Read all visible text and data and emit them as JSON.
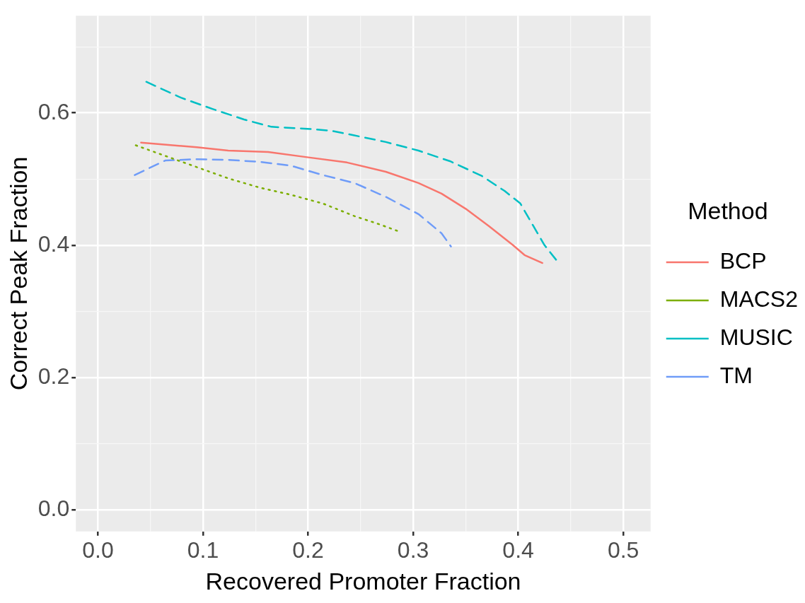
{
  "chart_data": {
    "type": "line",
    "xlabel": "Recovered Promoter Fraction",
    "ylabel": "Correct Peak Fraction",
    "legend_title": "Method",
    "xlim": [
      -0.021,
      0.526
    ],
    "ylim": [
      -0.033,
      0.747
    ],
    "xticks": [
      {
        "value": 0,
        "label": "0.0"
      },
      {
        "value": 0.05,
        "label": null
      },
      0.1,
      {
        "value": 0.15,
        "label": null
      },
      0.2,
      {
        "value": 0.25,
        "label": null
      },
      0.3,
      {
        "value": 0.35,
        "label": null
      },
      0.4,
      {
        "value": 0.45,
        "label": null
      },
      0.5
    ],
    "yticks": [
      {
        "value": 0,
        "label": "0.0"
      },
      {
        "value": 0.1,
        "label": null
      },
      0.2,
      {
        "value": 0.3,
        "label": null
      },
      0.4,
      {
        "value": 0.5,
        "label": null
      },
      0.6,
      {
        "value": 0.7,
        "label": null
      }
    ],
    "grid": true,
    "legend": "right",
    "marker": "none",
    "series": [
      {
        "name": "BCP",
        "color": "#f8766d",
        "line_style": "solid",
        "x": [
          0.041,
          0.094,
          0.124,
          0.162,
          0.199,
          0.237,
          0.274,
          0.305,
          0.327,
          0.35,
          0.372,
          0.395,
          0.406,
          0.423
        ],
        "values": [
          0.555,
          0.548,
          0.543,
          0.541,
          0.533,
          0.525,
          0.511,
          0.494,
          0.478,
          0.455,
          0.429,
          0.4,
          0.385,
          0.373
        ]
      },
      {
        "name": "MACS2",
        "color": "#7cae00",
        "line_style": "dotted",
        "x": [
          0.036,
          0.064,
          0.094,
          0.124,
          0.154,
          0.184,
          0.214,
          0.244,
          0.267,
          0.286
        ],
        "values": [
          0.551,
          0.535,
          0.518,
          0.501,
          0.487,
          0.476,
          0.463,
          0.444,
          0.432,
          0.421
        ]
      },
      {
        "name": "MUSIC",
        "color": "#00bfc4",
        "line_style": "dashed",
        "x": [
          0.046,
          0.079,
          0.109,
          0.139,
          0.165,
          0.199,
          0.222,
          0.244,
          0.274,
          0.305,
          0.335,
          0.365,
          0.387,
          0.402,
          0.414,
          0.425,
          0.436
        ],
        "values": [
          0.647,
          0.623,
          0.606,
          0.59,
          0.579,
          0.576,
          0.573,
          0.566,
          0.556,
          0.543,
          0.527,
          0.505,
          0.482,
          0.463,
          0.43,
          0.4,
          0.378
        ]
      },
      {
        "name": "TM",
        "color": "#6f9cf8",
        "line_style": "dashed",
        "x": [
          0.035,
          0.064,
          0.094,
          0.124,
          0.154,
          0.184,
          0.214,
          0.244,
          0.274,
          0.305,
          0.327,
          0.336
        ],
        "values": [
          0.506,
          0.528,
          0.53,
          0.529,
          0.526,
          0.52,
          0.506,
          0.494,
          0.473,
          0.447,
          0.418,
          0.398
        ]
      }
    ]
  }
}
